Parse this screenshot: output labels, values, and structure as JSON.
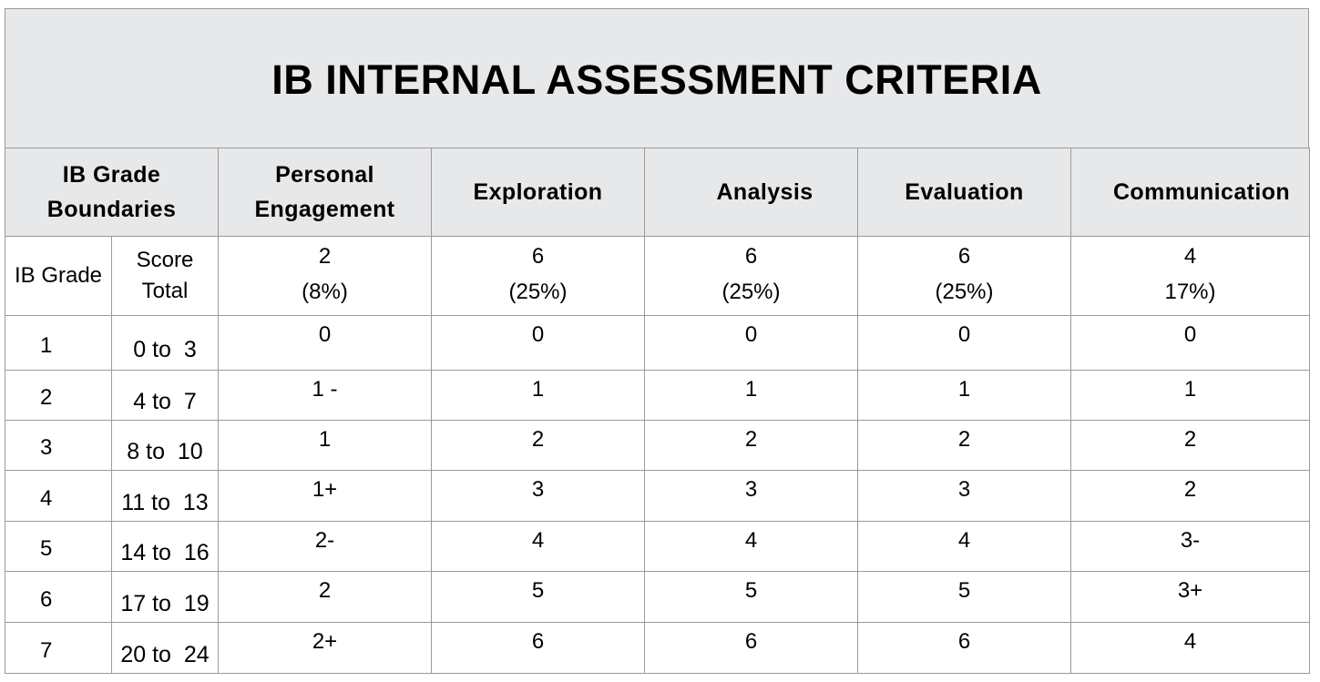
{
  "title": "IB INTERNAL ASSESSMENT CRITERIA",
  "header": {
    "boundaries": [
      "IB Grade",
      "Boundaries"
    ],
    "criteria": [
      [
        "Personal",
        "Engagement"
      ],
      [
        "Exploration"
      ],
      [
        "Analysis"
      ],
      [
        "Evaluation"
      ],
      [
        "Communication"
      ]
    ]
  },
  "subheader": {
    "grade": "IB Grade",
    "score": [
      "Score",
      "Total"
    ],
    "max_marks": [
      [
        "2",
        "(8%)"
      ],
      [
        "6",
        "(25%)"
      ],
      [
        "6",
        "(25%)"
      ],
      [
        "6",
        "(25%)"
      ],
      [
        "4",
        "17%)"
      ]
    ]
  },
  "rows": [
    {
      "grade": "1",
      "score": "0 to  3",
      "values": [
        "0",
        "0",
        "0",
        "0",
        "0"
      ]
    },
    {
      "grade": "2",
      "score": "4 to  7",
      "values": [
        "1 -",
        "1",
        "1",
        "1",
        "1"
      ]
    },
    {
      "grade": "3",
      "score": "8 to  10",
      "values": [
        "1",
        "2",
        "2",
        "2",
        "2"
      ]
    },
    {
      "grade": "4",
      "score": "11 to  13",
      "values": [
        "1+",
        "3",
        "3",
        "3",
        "2"
      ]
    },
    {
      "grade": "5",
      "score": "14 to  16",
      "values": [
        "2-",
        "4",
        "4",
        "4",
        "3-"
      ]
    },
    {
      "grade": "6",
      "score": "17 to  19",
      "values": [
        "2",
        "5",
        "5",
        "5",
        "3+"
      ]
    },
    {
      "grade": "7",
      "score": "20 to  24",
      "values": [
        "2+",
        "6",
        "6",
        "6",
        "4"
      ]
    }
  ],
  "colors": {
    "header_bg": "#e7e8ea",
    "border": "#9a9a9a"
  }
}
